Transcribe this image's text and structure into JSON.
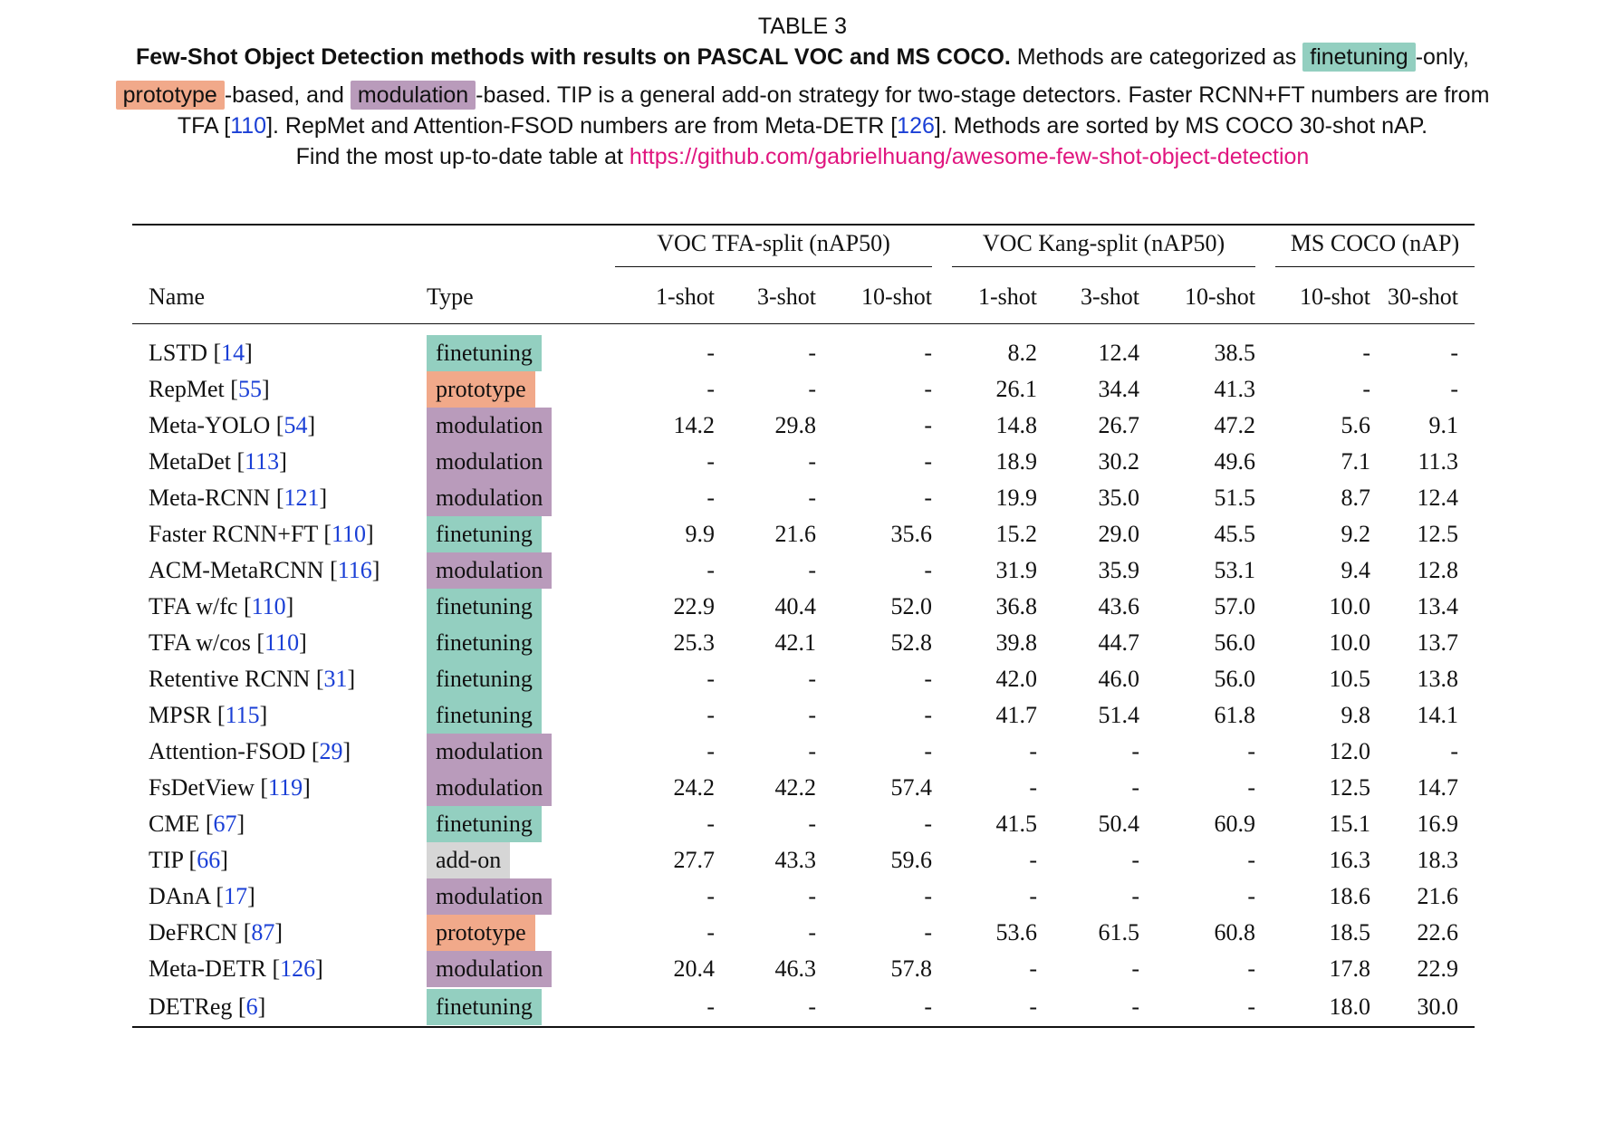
{
  "caption": {
    "table_label": "TABLE 3",
    "bold_title": "Few-Shot Object Detection methods with results on PASCAL VOC and MS COCO.",
    "text_1": " Methods are categorized as ",
    "chip_finetuning": "finetuning",
    "text_2": "-only,",
    "chip_prototype": "prototype",
    "text_3": "-based, and ",
    "chip_modulation": "modulation",
    "text_4": "-based. TIP is a general add-on strategy for two-stage detectors. Faster RCNN+FT numbers are from",
    "text_5": "TFA [",
    "ref_tfa": "110",
    "text_6": "]. RepMet and Attention-FSOD numbers are from Meta-DETR [",
    "ref_metadetr": "126",
    "text_7": "]. Methods are sorted by MS COCO 30-shot nAP.",
    "text_8": "Find the most up-to-date table at ",
    "link": "https://github.com/gabrielhuang/awesome-few-shot-object-detection"
  },
  "table": {
    "group_headers": {
      "voc_tfa": "VOC TFA-split (nAP50)",
      "voc_kang": "VOC Kang-split (nAP50)",
      "coco": "MS COCO (nAP)"
    },
    "columns": [
      "Name",
      "Type",
      "1-shot",
      "3-shot",
      "10-shot",
      "1-shot",
      "3-shot",
      "10-shot",
      "10-shot",
      "30-shot"
    ],
    "rows": [
      {
        "name": "LSTD",
        "ref": "14",
        "type": "finetuning",
        "values": [
          "-",
          "-",
          "-",
          "8.2",
          "12.4",
          "38.5",
          "-",
          "-"
        ]
      },
      {
        "name": "RepMet",
        "ref": "55",
        "type": "prototype",
        "values": [
          "-",
          "-",
          "-",
          "26.1",
          "34.4",
          "41.3",
          "-",
          "-"
        ]
      },
      {
        "name": "Meta-YOLO",
        "ref": "54",
        "type": "modulation",
        "values": [
          "14.2",
          "29.8",
          "-",
          "14.8",
          "26.7",
          "47.2",
          "5.6",
          "9.1"
        ]
      },
      {
        "name": "MetaDet",
        "ref": "113",
        "type": "modulation",
        "values": [
          "-",
          "-",
          "-",
          "18.9",
          "30.2",
          "49.6",
          "7.1",
          "11.3"
        ]
      },
      {
        "name": "Meta-RCNN",
        "ref": "121",
        "type": "modulation",
        "values": [
          "-",
          "-",
          "-",
          "19.9",
          "35.0",
          "51.5",
          "8.7",
          "12.4"
        ]
      },
      {
        "name": "Faster RCNN+FT",
        "ref": "110",
        "type": "finetuning",
        "values": [
          "9.9",
          "21.6",
          "35.6",
          "15.2",
          "29.0",
          "45.5",
          "9.2",
          "12.5"
        ]
      },
      {
        "name": "ACM-MetaRCNN",
        "ref": "116",
        "type": "modulation",
        "values": [
          "-",
          "-",
          "-",
          "31.9",
          "35.9",
          "53.1",
          "9.4",
          "12.8"
        ]
      },
      {
        "name": "TFA w/fc",
        "ref": "110",
        "type": "finetuning",
        "values": [
          "22.9",
          "40.4",
          "52.0",
          "36.8",
          "43.6",
          "57.0",
          "10.0",
          "13.4"
        ]
      },
      {
        "name": "TFA w/cos",
        "ref": "110",
        "type": "finetuning",
        "values": [
          "25.3",
          "42.1",
          "52.8",
          "39.8",
          "44.7",
          "56.0",
          "10.0",
          "13.7"
        ]
      },
      {
        "name": "Retentive RCNN",
        "ref": "31",
        "type": "finetuning",
        "values": [
          "-",
          "-",
          "-",
          "42.0",
          "46.0",
          "56.0",
          "10.5",
          "13.8"
        ]
      },
      {
        "name": "MPSR",
        "ref": "115",
        "type": "finetuning",
        "values": [
          "-",
          "-",
          "-",
          "41.7",
          "51.4",
          "61.8",
          "9.8",
          "14.1"
        ]
      },
      {
        "name": "Attention-FSOD",
        "ref": "29",
        "type": "modulation",
        "values": [
          "-",
          "-",
          "-",
          "-",
          "-",
          "-",
          "12.0",
          "-"
        ]
      },
      {
        "name": "FsDetView",
        "ref": "119",
        "type": "modulation",
        "values": [
          "24.2",
          "42.2",
          "57.4",
          "-",
          "-",
          "-",
          "12.5",
          "14.7"
        ]
      },
      {
        "name": "CME",
        "ref": "67",
        "type": "finetuning",
        "values": [
          "-",
          "-",
          "-",
          "41.5",
          "50.4",
          "60.9",
          "15.1",
          "16.9"
        ]
      },
      {
        "name": "TIP",
        "ref": "66",
        "type": "add-on",
        "values": [
          "27.7",
          "43.3",
          "59.6",
          "-",
          "-",
          "-",
          "16.3",
          "18.3"
        ]
      },
      {
        "name": "DAnA",
        "ref": "17",
        "type": "modulation",
        "values": [
          "-",
          "-",
          "-",
          "-",
          "-",
          "-",
          "18.6",
          "21.6"
        ]
      },
      {
        "name": "DeFRCN",
        "ref": "87",
        "type": "prototype",
        "values": [
          "-",
          "-",
          "-",
          "53.6",
          "61.5",
          "60.8",
          "18.5",
          "22.6"
        ]
      },
      {
        "name": "Meta-DETR",
        "ref": "126",
        "type": "modulation",
        "values": [
          "20.4",
          "46.3",
          "57.8",
          "-",
          "-",
          "-",
          "17.8",
          "22.9"
        ]
      },
      {
        "name": "DETReg",
        "ref": "6",
        "type": "finetuning",
        "values": [
          "-",
          "-",
          "-",
          "-",
          "-",
          "-",
          "18.0",
          "30.0"
        ]
      }
    ]
  },
  "colors": {
    "finetuning": "#93cfc0",
    "prototype": "#f1a98a",
    "modulation": "#b99bbb",
    "add-on": "#d6d6d6",
    "reference": "#1a3fd6",
    "link": "#e0157f"
  }
}
